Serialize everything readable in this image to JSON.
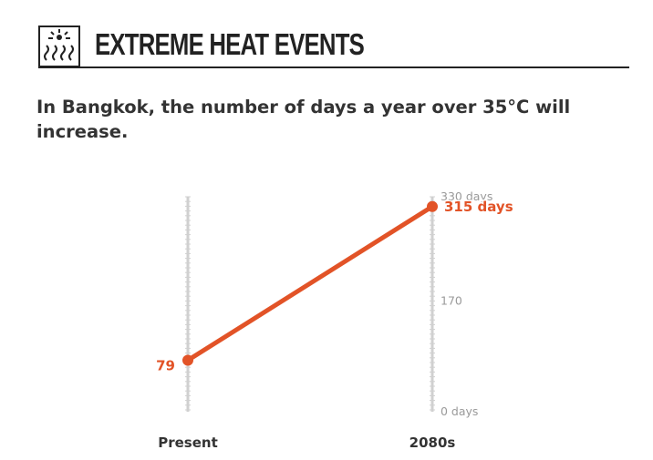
{
  "header": {
    "title": "EXTREME HEAT EVENTS",
    "icon": "heat-waves-icon"
  },
  "subtitle": "In Bangkok, the number of days a year over 35°C will increase.",
  "colors": {
    "accent": "#e25327",
    "axis": "#d0d0d0",
    "tick_label": "#9a9a9a",
    "category_label": "#333333"
  },
  "chart_data": {
    "type": "line",
    "title": "",
    "xlabel": "",
    "ylabel": "",
    "categories": [
      "Present",
      "2080s"
    ],
    "series": [
      {
        "values": [
          79,
          315
        ]
      }
    ],
    "data_labels": [
      "79",
      "315 days"
    ],
    "ylim": [
      0,
      330
    ],
    "y_ticks": [
      {
        "value": 330,
        "label": "330 days"
      },
      {
        "value": 170,
        "label": "170"
      },
      {
        "value": 0,
        "label": "0 days"
      }
    ],
    "grid": false,
    "legend": "none"
  }
}
